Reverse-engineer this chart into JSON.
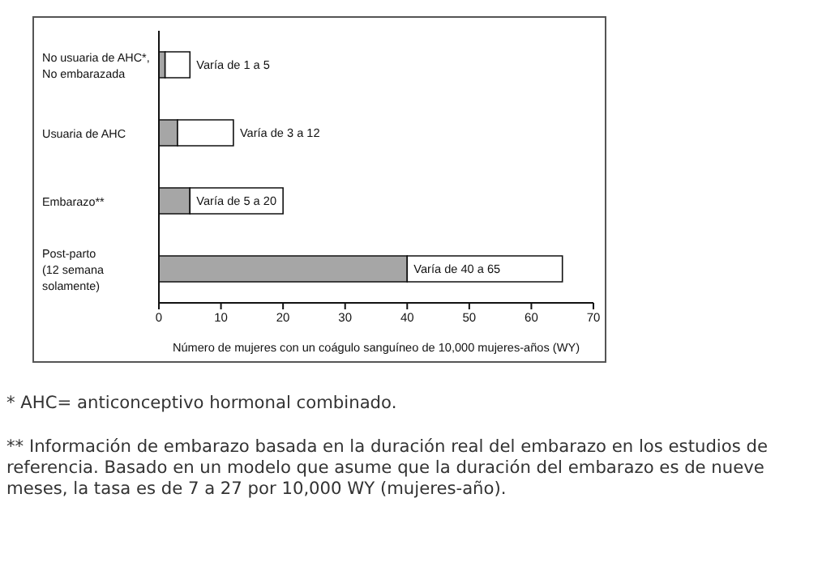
{
  "chart_data": {
    "type": "bar",
    "orientation": "horizontal",
    "stacked": true,
    "categories": [
      "No usuaria de AHC*,\nNo embarazada",
      "Usuaria de AHC",
      "Embarazo**",
      "Post-parto\n(12 semana\nsolamente)"
    ],
    "series": [
      {
        "color": "#a6a6a6",
        "values": [
          1,
          3,
          5,
          40
        ]
      },
      {
        "color": "#ffffff",
        "values": [
          4,
          9,
          15,
          25
        ]
      }
    ],
    "xlabel": "Número de mujeres con un coágulo sanguíneo de 10,000 mujeres-años (WY)",
    "xlim": [
      0,
      70
    ],
    "xticks": [
      0,
      10,
      20,
      30,
      40,
      50,
      60,
      70
    ],
    "grid": false,
    "legend": false,
    "annotations": [
      {
        "text": "Varía de 1 a 5",
        "x": 5,
        "y": "No usuaria de AHC*,\nNo embarazada"
      },
      {
        "text": "Varía de 3 a 12",
        "x": 12,
        "y": "Usuaria de AHC"
      },
      {
        "text": "Varía de 5 a 20",
        "x": 5,
        "y": "Embarazo**"
      },
      {
        "text": "Varía de 40 a 65",
        "x": 40,
        "y": "Post-parto\n(12 semana\nsolamente)"
      },
      "* AHC= anticonceptivo hormonal combinado.",
      "** Información de embarazo basada en la duración real del embarazo en los estudios de referencia. Basado en un modelo que asume que la duración del embarazo es de nueve meses, la tasa es de 7 a 27 por 10,000 WY (mujeres-año)."
    ]
  }
}
